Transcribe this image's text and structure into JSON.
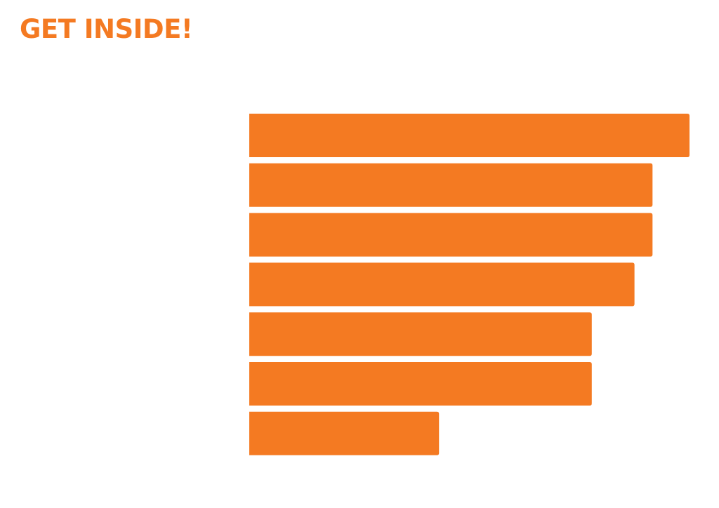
{
  "chart_data": {
    "type": "bar",
    "orientation": "horizontal",
    "title": "GET INSIDE!",
    "categories": [
      "",
      "",
      "",
      "",
      "",
      "",
      ""
    ],
    "values": [
      100,
      91.6,
      91.6,
      87.5,
      77.8,
      77.8,
      43.1
    ],
    "value_labels": false,
    "axes_visible": false,
    "grid": false,
    "xlim": [
      0,
      100
    ],
    "colors": {
      "bar": "#F47A22",
      "title": "#F47A22",
      "background": "#FFFFFF"
    }
  }
}
